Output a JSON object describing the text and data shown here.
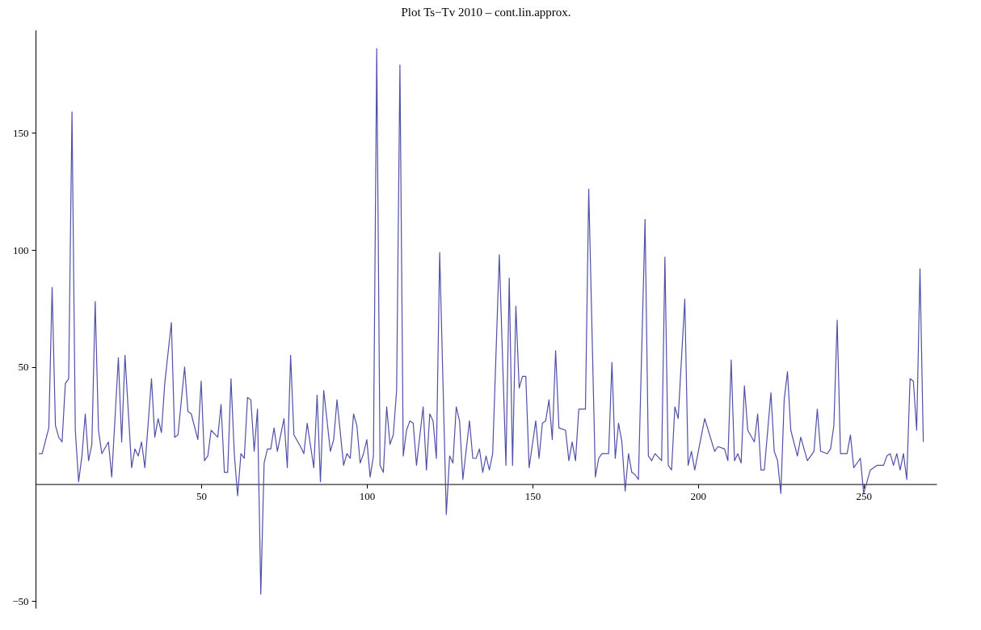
{
  "chart_data": {
    "type": "line",
    "title": "Plot Ts−Tv 2010 – cont.lin.approx.",
    "xlim": [
      0,
      272
    ],
    "ylim": [
      -53,
      194
    ],
    "xticks": [
      50,
      100,
      150,
      200,
      250
    ],
    "yticks": [
      -50,
      50,
      100,
      150
    ],
    "grid": false,
    "marker": "none",
    "line_style": "solid",
    "series": [
      {
        "color": "#5050a8",
        "x": [
          1,
          2,
          4,
          5,
          6,
          7,
          8,
          9,
          10,
          11,
          12,
          13,
          14,
          15,
          16,
          17,
          18,
          19,
          20,
          22,
          23,
          25,
          26,
          27,
          29,
          30,
          31,
          32,
          33,
          35,
          36,
          37,
          38,
          39,
          41,
          42,
          43,
          45,
          46,
          47,
          49,
          50,
          51,
          52,
          53,
          55,
          56,
          57,
          58,
          59,
          60,
          61,
          62,
          63,
          64,
          65,
          66,
          67,
          68,
          69,
          70,
          71,
          72,
          73,
          75,
          76,
          77,
          78,
          80,
          81,
          82,
          84,
          85,
          86,
          87,
          89,
          90,
          91,
          93,
          94,
          95,
          96,
          97,
          98,
          99,
          100,
          101,
          102,
          103,
          104,
          105,
          106,
          107,
          108,
          109,
          110,
          111,
          112,
          113,
          114,
          115,
          117,
          118,
          119,
          120,
          121,
          122,
          124,
          125,
          126,
          127,
          128,
          129,
          131,
          132,
          133,
          134,
          135,
          136,
          137,
          138,
          140,
          142,
          143,
          144,
          145,
          146,
          147,
          148,
          149,
          151,
          152,
          153,
          154,
          155,
          156,
          157,
          158,
          160,
          161,
          162,
          163,
          164,
          166,
          167,
          169,
          170,
          171,
          173,
          174,
          175,
          176,
          177,
          178,
          179,
          180,
          181,
          182,
          184,
          185,
          186,
          187,
          189,
          190,
          191,
          192,
          193,
          194,
          196,
          197,
          198,
          199,
          202,
          205,
          206,
          208,
          209,
          210,
          211,
          212,
          213,
          214,
          215,
          217,
          218,
          219,
          220,
          222,
          223,
          224,
          225,
          226,
          227,
          228,
          230,
          231,
          233,
          235,
          236,
          237,
          239,
          240,
          241,
          242,
          243,
          245,
          246,
          247,
          248,
          249,
          250,
          252,
          254,
          256,
          257,
          258,
          259,
          260,
          261,
          262,
          263,
          264,
          265,
          266,
          267,
          268
        ],
        "values": [
          13,
          13,
          24,
          84,
          25,
          20,
          18,
          43,
          45,
          159,
          23,
          1,
          12,
          30,
          10,
          17,
          78,
          23,
          13,
          18,
          3,
          54,
          18,
          55,
          7,
          15,
          12,
          18,
          7,
          45,
          20,
          28,
          22,
          43,
          69,
          20,
          21,
          50,
          31,
          30,
          19,
          44,
          10,
          12,
          23,
          20,
          34,
          5,
          5,
          45,
          13,
          -5,
          13,
          11,
          37,
          36,
          14,
          32,
          -47,
          9,
          15,
          15,
          24,
          14,
          28,
          7,
          55,
          21,
          16,
          13,
          26,
          7,
          38,
          1,
          40,
          14,
          19,
          36,
          8,
          13,
          11,
          30,
          25,
          9,
          13,
          19,
          3,
          12,
          186,
          8,
          5,
          33,
          17,
          21,
          40,
          179,
          12,
          23,
          27,
          26,
          8,
          33,
          6,
          30,
          27,
          11,
          99,
          -13,
          12,
          9,
          33,
          27,
          2,
          27,
          11,
          11,
          15,
          5,
          12,
          6,
          13,
          98,
          8,
          88,
          8,
          76,
          41,
          46,
          46,
          7,
          27,
          11,
          26,
          27,
          36,
          19,
          57,
          24,
          23,
          10,
          18,
          10,
          32,
          32,
          126,
          3,
          11,
          13,
          13,
          52,
          11,
          26,
          18,
          -3,
          13,
          5,
          4,
          2,
          113,
          12,
          10,
          13,
          10,
          97,
          8,
          6,
          33,
          28,
          79,
          8,
          14,
          6,
          28,
          14,
          16,
          15,
          10,
          53,
          10,
          13,
          9,
          42,
          23,
          18,
          30,
          6,
          6,
          39,
          14,
          10,
          -4,
          36,
          48,
          23,
          12,
          20,
          10,
          14,
          32,
          14,
          13,
          15,
          25,
          70,
          13,
          13,
          21,
          7,
          9,
          11,
          -4,
          6,
          8,
          8,
          12,
          13,
          8,
          13,
          6,
          13,
          2,
          45,
          44,
          23,
          92,
          18
        ]
      }
    ]
  }
}
